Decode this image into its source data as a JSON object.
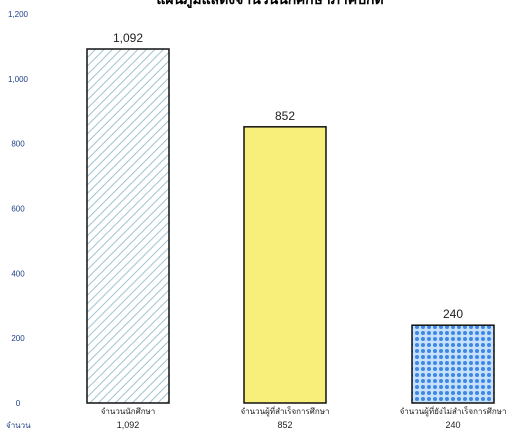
{
  "chart_data": {
    "type": "bar",
    "title": "แผนภูมิแสดงจำนวนนักศึกษาภาคปกติ",
    "categories": [
      "จำนวนนักศึกษา",
      "จำนวนผู้ที่สำเร็จการศึกษา",
      "จำนวนผู้ที่ยังไม่สำเร็จการศึกษา"
    ],
    "values": [
      1092,
      852,
      240
    ],
    "value_labels": [
      "1,092",
      "852",
      "240"
    ],
    "table_row_label": "จำนวน",
    "table_values": [
      "1,092",
      "852",
      "240"
    ],
    "ylim": [
      0,
      1200
    ],
    "yticks": [
      0,
      200,
      400,
      600,
      800,
      1000,
      1200
    ],
    "ytick_labels": [
      "0",
      "200",
      "400",
      "600",
      "800",
      "1,000",
      "1,200"
    ],
    "bar_fills": [
      "diagonal-hatch",
      "solid",
      "dots"
    ],
    "colors": {
      "axis_text": "#1f3f86",
      "bar_edge": "#111111",
      "bar1_hatch": "#9fc4cf",
      "bar2_fill": "#f8ef7a",
      "bar3_dots": "#3d87e6",
      "bar3_bg": "#c7e1fb"
    },
    "grid": false,
    "legend": "none"
  }
}
